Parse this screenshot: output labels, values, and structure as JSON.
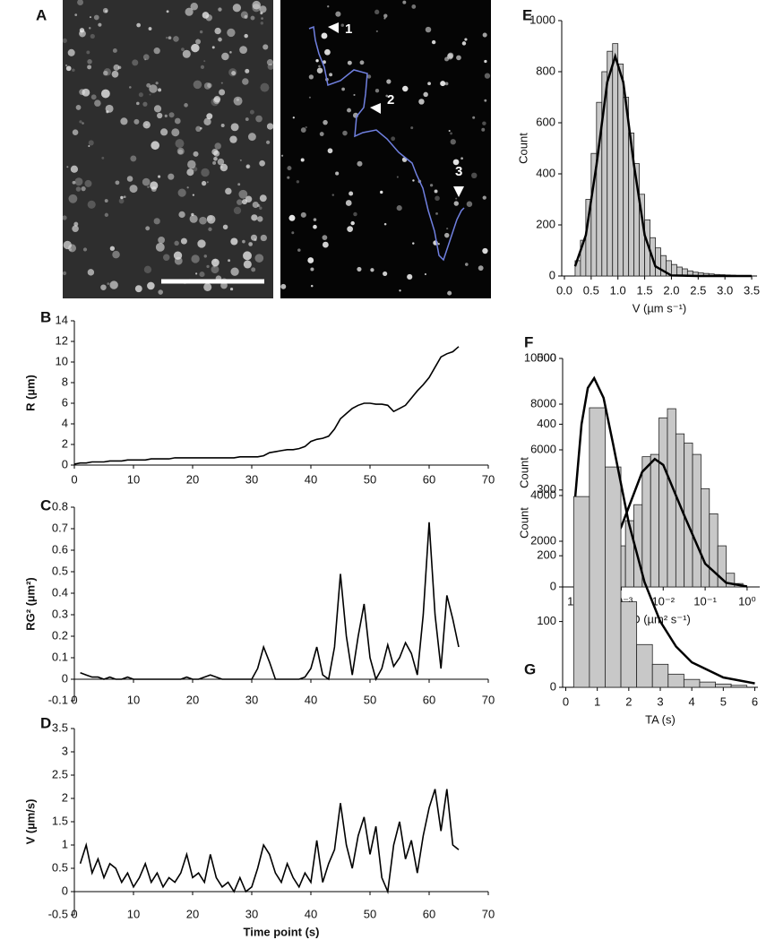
{
  "panel_a": {
    "label": "A",
    "track_markers": [
      "1",
      "2",
      "3"
    ]
  },
  "chart_data": [
    {
      "type": "line",
      "panel": "B",
      "ylabel": "R (µm)",
      "color": "#000000",
      "x": [
        0,
        1,
        2,
        3,
        4,
        5,
        6,
        7,
        8,
        9,
        10,
        11,
        12,
        13,
        14,
        15,
        16,
        17,
        18,
        19,
        20,
        21,
        22,
        23,
        24,
        25,
        26,
        27,
        28,
        29,
        30,
        31,
        32,
        33,
        34,
        35,
        36,
        37,
        38,
        39,
        40,
        41,
        42,
        43,
        44,
        45,
        46,
        47,
        48,
        49,
        50,
        51,
        52,
        53,
        54,
        55,
        56,
        57,
        58,
        59,
        60,
        61,
        62,
        63,
        64,
        65
      ],
      "values": [
        0.1,
        0.2,
        0.2,
        0.3,
        0.3,
        0.3,
        0.4,
        0.4,
        0.4,
        0.5,
        0.5,
        0.5,
        0.5,
        0.6,
        0.6,
        0.6,
        0.6,
        0.7,
        0.7,
        0.7,
        0.7,
        0.7,
        0.7,
        0.7,
        0.7,
        0.7,
        0.7,
        0.7,
        0.8,
        0.8,
        0.8,
        0.8,
        0.9,
        1.2,
        1.3,
        1.4,
        1.5,
        1.5,
        1.6,
        1.8,
        2.3,
        2.5,
        2.6,
        2.8,
        3.5,
        4.5,
        5.0,
        5.5,
        5.8,
        6.0,
        6.0,
        5.9,
        5.9,
        5.8,
        5.2,
        5.5,
        5.8,
        6.5,
        7.2,
        7.8,
        8.5,
        9.5,
        10.5,
        10.8,
        11.0,
        11.5
      ],
      "xlim": [
        0,
        70
      ],
      "xticks": [
        0,
        10,
        20,
        30,
        40,
        50,
        60,
        70
      ],
      "ylim": [
        0,
        14
      ],
      "yticks": [
        0,
        2,
        4,
        6,
        8,
        10,
        12,
        14
      ]
    },
    {
      "type": "line",
      "panel": "C",
      "ylabel": "RG² (µm²)",
      "color": "#000000",
      "x": [
        1,
        2,
        3,
        4,
        5,
        6,
        7,
        8,
        9,
        10,
        11,
        12,
        13,
        14,
        15,
        16,
        17,
        18,
        19,
        20,
        21,
        22,
        23,
        24,
        25,
        26,
        27,
        28,
        29,
        30,
        31,
        32,
        33,
        34,
        35,
        36,
        37,
        38,
        39,
        40,
        41,
        42,
        43,
        44,
        45,
        46,
        47,
        48,
        49,
        50,
        51,
        52,
        53,
        54,
        55,
        56,
        57,
        58,
        59,
        60,
        61,
        62,
        63,
        64,
        65
      ],
      "values": [
        0.03,
        0.02,
        0.01,
        0.01,
        0.0,
        0.01,
        0.0,
        0.0,
        0.01,
        0.0,
        0.0,
        0.0,
        0.0,
        0.0,
        0.0,
        0.0,
        0.0,
        0.0,
        0.01,
        0.0,
        0.0,
        0.01,
        0.02,
        0.01,
        0.0,
        0.0,
        0.0,
        0.0,
        0.0,
        0.0,
        0.05,
        0.15,
        0.08,
        0.0,
        0.0,
        0.0,
        0.0,
        0.0,
        0.01,
        0.05,
        0.15,
        0.02,
        0.0,
        0.15,
        0.49,
        0.2,
        0.02,
        0.2,
        0.35,
        0.1,
        0.0,
        0.05,
        0.16,
        0.06,
        0.1,
        0.17,
        0.12,
        0.02,
        0.3,
        0.73,
        0.3,
        0.05,
        0.39,
        0.28,
        0.15
      ],
      "xlim": [
        0,
        70
      ],
      "xticks": [
        0,
        10,
        20,
        30,
        40,
        50,
        60,
        70
      ],
      "ylim": [
        -0.1,
        0.8
      ],
      "yticks": [
        -0.1,
        0,
        0.1,
        0.2,
        0.3,
        0.4,
        0.5,
        0.6,
        0.7,
        0.8
      ]
    },
    {
      "type": "line",
      "panel": "D",
      "ylabel": "V (µm/s)",
      "xlabel": "Time point (s)",
      "color": "#000000",
      "x": [
        1,
        2,
        3,
        4,
        5,
        6,
        7,
        8,
        9,
        10,
        11,
        12,
        13,
        14,
        15,
        16,
        17,
        18,
        19,
        20,
        21,
        22,
        23,
        24,
        25,
        26,
        27,
        28,
        29,
        30,
        31,
        32,
        33,
        34,
        35,
        36,
        37,
        38,
        39,
        40,
        41,
        42,
        43,
        44,
        45,
        46,
        47,
        48,
        49,
        50,
        51,
        52,
        53,
        54,
        55,
        56,
        57,
        58,
        59,
        60,
        61,
        62,
        63,
        64,
        65
      ],
      "values": [
        0.6,
        1.0,
        0.4,
        0.7,
        0.3,
        0.6,
        0.5,
        0.2,
        0.4,
        0.1,
        0.3,
        0.6,
        0.2,
        0.4,
        0.1,
        0.3,
        0.2,
        0.4,
        0.8,
        0.3,
        0.4,
        0.2,
        0.8,
        0.3,
        0.1,
        0.2,
        0.0,
        0.3,
        0.0,
        0.1,
        0.5,
        1.0,
        0.8,
        0.4,
        0.2,
        0.6,
        0.3,
        0.1,
        0.4,
        0.2,
        1.1,
        0.2,
        0.6,
        0.9,
        1.9,
        1.0,
        0.5,
        1.2,
        1.6,
        0.8,
        1.4,
        0.3,
        0.0,
        1.0,
        1.5,
        0.7,
        1.1,
        0.4,
        1.2,
        1.8,
        2.2,
        1.3,
        2.2,
        1.0,
        0.9
      ],
      "xlim": [
        0,
        70
      ],
      "xticks": [
        0,
        10,
        20,
        30,
        40,
        50,
        60,
        70
      ],
      "ylim": [
        -0.5,
        3.5
      ],
      "yticks": [
        -0.5,
        0,
        0.5,
        1,
        1.5,
        2,
        2.5,
        3,
        3.5
      ]
    },
    {
      "type": "histogram",
      "panel": "E",
      "ylabel": "Count",
      "xlabel": "V (µm s⁻¹)",
      "color": "#c8c8c8",
      "bins": [
        0.2,
        0.3,
        0.4,
        0.5,
        0.6,
        0.7,
        0.8,
        0.9,
        1.0,
        1.1,
        1.2,
        1.3,
        1.4,
        1.5,
        1.6,
        1.7,
        1.8,
        1.9,
        2.0,
        2.1,
        2.2,
        2.3,
        2.4,
        2.5,
        2.6,
        2.7,
        2.8,
        2.9,
        3.0,
        3.1,
        3.2,
        3.3,
        3.4,
        3.5
      ],
      "values": [
        60,
        140,
        300,
        480,
        680,
        800,
        880,
        910,
        830,
        700,
        560,
        440,
        320,
        220,
        150,
        110,
        80,
        60,
        45,
        35,
        28,
        20,
        15,
        12,
        10,
        8,
        6,
        5,
        4,
        3,
        2,
        2,
        1
      ],
      "fit": {
        "x": [
          0.2,
          0.4,
          0.6,
          0.8,
          0.95,
          1.1,
          1.3,
          1.5,
          1.7,
          2.0,
          2.5,
          3.5
        ],
        "values": [
          38,
          160,
          435,
          759,
          860,
          759,
          435,
          160,
          38,
          2,
          0,
          0
        ]
      },
      "xlim": [
        -0.05,
        3.6
      ],
      "xticks": [
        {
          "value": 0,
          "label": "0.0"
        },
        0.5,
        {
          "value": 1,
          "label": "1.0"
        },
        1.5,
        {
          "value": 2,
          "label": "2.0"
        },
        2.5,
        {
          "value": 3,
          "label": "3.0"
        },
        3.5
      ],
      "ylim": [
        0,
        1000
      ],
      "yticks": [
        0,
        200,
        400,
        600,
        800,
        1000
      ]
    },
    {
      "type": "histogram",
      "panel": "F",
      "ylabel": "Count",
      "xlabel": "D (µm² s⁻¹)",
      "color": "#c8c8c8",
      "log_x": true,
      "bins": [
        7.94e-05,
        0.000126,
        0.0002,
        0.000316,
        0.000501,
        0.000794,
        0.00126,
        0.002,
        0.00316,
        0.00501,
        0.00794,
        0.0126,
        0.02,
        0.0316,
        0.0501,
        0.0794,
        0.126,
        0.2,
        0.316,
        0.501,
        0.794
      ],
      "values": [
        1900,
        0,
        0,
        1200,
        1600,
        1800,
        2900,
        3600,
        5700,
        5800,
        7400,
        7800,
        6700,
        6300,
        5800,
        4300,
        3200,
        1800,
        600,
        150
      ],
      "fit": {
        "x": [
          0.0001,
          0.000316,
          0.001,
          0.00316,
          0.0063,
          0.01,
          0.0316,
          0.1,
          0.316,
          1
        ],
        "values": [
          122,
          758,
          2627,
          5034,
          5600,
          5342,
          3135,
          1020,
          183,
          18
        ]
      },
      "xlim": [
        4e-05,
        2
      ],
      "xticks": [
        {
          "value": 0.0001,
          "label": "10⁻⁴"
        },
        {
          "value": 0.001,
          "label": "10⁻³"
        },
        {
          "value": 0.01,
          "label": "10⁻²"
        },
        {
          "value": 0.1,
          "label": "10⁻¹"
        },
        {
          "value": 1,
          "label": "10⁰"
        }
      ],
      "ylim": [
        0,
        10000
      ],
      "yticks": [
        0,
        2000,
        4000,
        6000,
        8000,
        10000
      ]
    },
    {
      "type": "histogram",
      "panel": "G",
      "ylabel": "Count",
      "xlabel": "TA (s)",
      "color": "#c8c8c8",
      "bins": [
        0.25,
        0.75,
        1.25,
        1.75,
        2.25,
        2.75,
        3.25,
        3.75,
        4.25,
        4.75,
        5.25,
        5.75
      ],
      "values": [
        290,
        425,
        335,
        130,
        65,
        35,
        20,
        12,
        8,
        5,
        3
      ],
      "fit": {
        "x": [
          0.3,
          0.5,
          0.7,
          0.9,
          1.2,
          1.5,
          2.0,
          2.5,
          3,
          3.5,
          4,
          5,
          6
        ],
        "values": [
          290,
          400,
          455,
          470,
          440,
          370,
          250,
          160,
          100,
          62,
          38,
          15,
          6
        ]
      },
      "xlim": [
        -0.1,
        6.1
      ],
      "xticks": [
        0,
        1,
        2,
        3,
        4,
        5,
        6
      ],
      "ylim": [
        0,
        500
      ],
      "yticks": [
        0,
        100,
        200,
        300,
        400,
        500
      ]
    }
  ]
}
